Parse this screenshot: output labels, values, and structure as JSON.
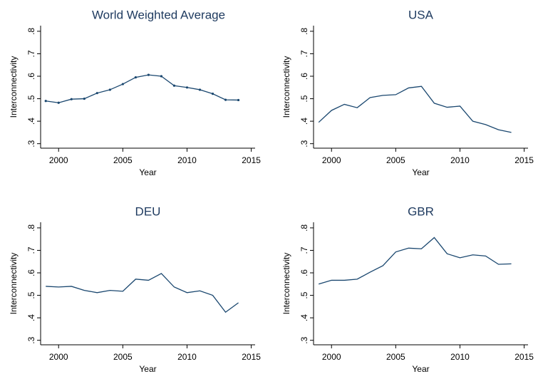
{
  "chart_data": [
    {
      "type": "line",
      "title": "World Weighted Average",
      "xlabel": "Year",
      "ylabel": "Interconnectivity",
      "x": [
        1999,
        2000,
        2001,
        2002,
        2003,
        2004,
        2005,
        2006,
        2007,
        2008,
        2009,
        2010,
        2011,
        2012,
        2013,
        2014
      ],
      "series": [
        {
          "name": "World Weighted Average",
          "color": "#1a476f",
          "markers": true,
          "values": [
            0.49,
            0.482,
            0.498,
            0.5,
            0.525,
            0.54,
            0.565,
            0.595,
            0.606,
            0.6,
            0.558,
            0.55,
            0.54,
            0.522,
            0.495,
            0.494
          ]
        }
      ],
      "xlim": [
        1998.6,
        2015.3
      ],
      "xticks": [
        2000,
        2005,
        2010,
        2015
      ],
      "ylim": [
        0.28,
        0.825
      ],
      "yticks": [
        {
          "value": 0.3,
          "label": ".3"
        },
        {
          "value": 0.4,
          "label": ".4"
        },
        {
          "value": 0.5,
          "label": ".5"
        },
        {
          "value": 0.6,
          "label": ".6"
        },
        {
          "value": 0.7,
          "label": ".7"
        },
        {
          "value": 0.8,
          "label": ".8"
        }
      ]
    },
    {
      "type": "line",
      "title": "USA",
      "xlabel": "Year",
      "ylabel": "Interconnectivity",
      "x": [
        1999,
        2000,
        2001,
        2002,
        2003,
        2004,
        2005,
        2006,
        2007,
        2008,
        2009,
        2010,
        2011,
        2012,
        2013,
        2014
      ],
      "series": [
        {
          "name": "USA",
          "color": "#1a476f",
          "markers": false,
          "values": [
            0.395,
            0.448,
            0.475,
            0.46,
            0.505,
            0.515,
            0.518,
            0.548,
            0.555,
            0.48,
            0.462,
            0.467,
            0.4,
            0.385,
            0.362,
            0.35
          ]
        }
      ],
      "xlim": [
        1998.6,
        2015.3
      ],
      "xticks": [
        2000,
        2005,
        2010,
        2015
      ],
      "ylim": [
        0.28,
        0.825
      ],
      "yticks": [
        {
          "value": 0.3,
          "label": ".3"
        },
        {
          "value": 0.4,
          "label": ".4"
        },
        {
          "value": 0.5,
          "label": ".5"
        },
        {
          "value": 0.6,
          "label": ".6"
        },
        {
          "value": 0.7,
          "label": ".7"
        },
        {
          "value": 0.8,
          "label": ".8"
        }
      ]
    },
    {
      "type": "line",
      "title": "DEU",
      "xlabel": "Year",
      "ylabel": "Interconnectivity",
      "x": [
        1999,
        2000,
        2001,
        2002,
        2003,
        2004,
        2005,
        2006,
        2007,
        2008,
        2009,
        2010,
        2011,
        2012,
        2013,
        2014
      ],
      "series": [
        {
          "name": "DEU",
          "color": "#1a476f",
          "markers": false,
          "values": [
            0.54,
            0.537,
            0.54,
            0.522,
            0.512,
            0.522,
            0.518,
            0.572,
            0.567,
            0.597,
            0.537,
            0.512,
            0.52,
            0.5,
            0.425,
            0.467
          ]
        }
      ],
      "xlim": [
        1998.6,
        2015.3
      ],
      "xticks": [
        2000,
        2005,
        2010,
        2015
      ],
      "ylim": [
        0.28,
        0.825
      ],
      "yticks": [
        {
          "value": 0.3,
          "label": ".3"
        },
        {
          "value": 0.4,
          "label": ".4"
        },
        {
          "value": 0.5,
          "label": ".5"
        },
        {
          "value": 0.6,
          "label": ".6"
        },
        {
          "value": 0.7,
          "label": ".7"
        },
        {
          "value": 0.8,
          "label": ".8"
        }
      ]
    },
    {
      "type": "line",
      "title": "GBR",
      "xlabel": "Year",
      "ylabel": "Interconnectivity",
      "x": [
        1999,
        2000,
        2001,
        2002,
        2003,
        2004,
        2005,
        2006,
        2007,
        2008,
        2009,
        2010,
        2011,
        2012,
        2013,
        2014
      ],
      "series": [
        {
          "name": "GBR",
          "color": "#1a476f",
          "markers": false,
          "values": [
            0.55,
            0.567,
            0.567,
            0.572,
            0.603,
            0.632,
            0.693,
            0.71,
            0.707,
            0.757,
            0.685,
            0.667,
            0.68,
            0.675,
            0.638,
            0.64
          ]
        }
      ],
      "xlim": [
        1998.6,
        2015.3
      ],
      "xticks": [
        2000,
        2005,
        2010,
        2015
      ],
      "ylim": [
        0.28,
        0.825
      ],
      "yticks": [
        {
          "value": 0.3,
          "label": ".3"
        },
        {
          "value": 0.4,
          "label": ".4"
        },
        {
          "value": 0.5,
          "label": ".5"
        },
        {
          "value": 0.6,
          "label": ".6"
        },
        {
          "value": 0.7,
          "label": ".7"
        },
        {
          "value": 0.8,
          "label": ".8"
        }
      ]
    }
  ]
}
